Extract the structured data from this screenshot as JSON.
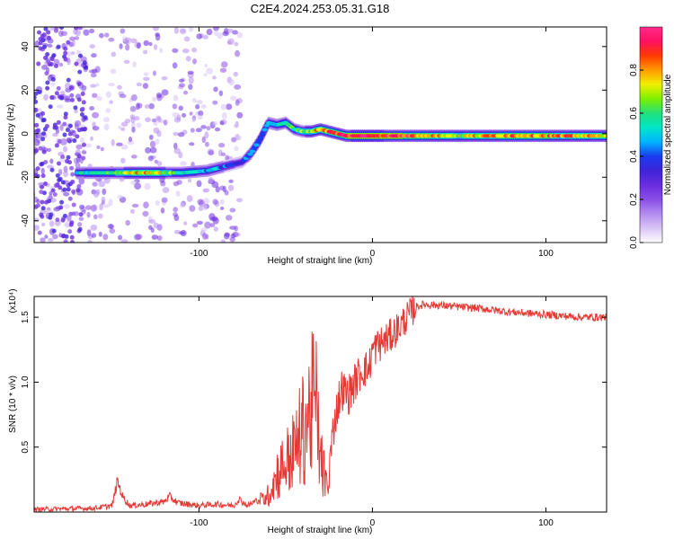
{
  "title": "C2E4.2024.253.05.31.G18",
  "colors": {
    "snr_line": "#e53935",
    "colormap": [
      "#ffffff",
      "#d9c4f5",
      "#b48cf0",
      "#8a4fe6",
      "#6a2de0",
      "#3e23d8",
      "#1a3cf0",
      "#00b4ff",
      "#00e6c8",
      "#22e07a",
      "#7cf000",
      "#f0f000",
      "#ff9a00",
      "#ff3a00",
      "#ff1060",
      "#ff2a8a"
    ]
  },
  "chart_data": [
    {
      "type": "heatmap",
      "xlabel": "Height of straight line (km)",
      "ylabel": "Frequency (Hz)",
      "xlim": [
        -195,
        135
      ],
      "ylim": [
        -50,
        49
      ],
      "xticks": [
        -100,
        0,
        100
      ],
      "xtick_labels": [
        "-100",
        "0",
        "100"
      ],
      "yticks": [
        -40,
        -20,
        0,
        20,
        40
      ],
      "ytick_labels": [
        "-40",
        "-20",
        "0",
        "20",
        "40"
      ],
      "grid": false,
      "ridge": {
        "x": [
          -170,
          -150,
          -130,
          -110,
          -95,
          -85,
          -75,
          -70,
          -65,
          -60,
          -55,
          -50,
          -45,
          -40,
          -35,
          -30,
          -25,
          -20,
          -15,
          -10,
          -5,
          0,
          20,
          50,
          80,
          110,
          135
        ],
        "frequency": [
          -18,
          -18,
          -18,
          -18,
          -17,
          -15,
          -13,
          -9,
          -3,
          5,
          4,
          5,
          2,
          1,
          1,
          2,
          1,
          0,
          -1,
          -1,
          -1,
          -1,
          -1,
          -1,
          -1,
          -1,
          -1
        ],
        "amplitude": [
          0.5,
          0.6,
          0.8,
          0.55,
          0.5,
          0.4,
          0.35,
          0.45,
          0.45,
          0.5,
          0.5,
          0.55,
          0.6,
          0.65,
          0.7,
          0.8,
          0.85,
          0.9,
          0.9,
          0.95,
          0.95,
          0.95,
          0.9,
          0.7,
          0.85,
          0.8,
          0.75
        ]
      },
      "colorbar": {
        "label": "Normalized spectral amplitude",
        "range": [
          0.0,
          1.0
        ],
        "ticks": [
          0.0,
          0.2,
          0.4,
          0.6,
          0.8
        ],
        "tick_labels": [
          "0.0",
          "0.2",
          "0.4",
          "0.6",
          "0.8"
        ]
      }
    },
    {
      "type": "line",
      "xlabel": "Height of straight line (km)",
      "ylabel": "SNR (10 * v/v)",
      "scale_label": "(x10⁴)",
      "xlim": [
        -195,
        135
      ],
      "ylim": [
        0.0,
        1.66
      ],
      "xticks": [
        -100,
        0,
        100
      ],
      "xtick_labels": [
        "-100",
        "0",
        "100"
      ],
      "yticks": [
        0.5,
        1.0,
        1.5
      ],
      "ytick_labels": [
        "0.5",
        "1.0",
        "1.5"
      ],
      "grid": false,
      "series": [
        {
          "x": [
            -195,
            -160,
            -150,
            -147,
            -144,
            -140,
            -130,
            -120,
            -117,
            -112,
            -100,
            -90,
            -80,
            -77,
            -72,
            -65,
            -60,
            -55,
            -50,
            -45,
            -40,
            -35,
            -33,
            -30,
            -26,
            -22,
            -18,
            -14,
            -10,
            -6,
            -2,
            0,
            5,
            10,
            15,
            20,
            25,
            30,
            40,
            60,
            80,
            100,
            120,
            135
          ],
          "y": [
            0.02,
            0.03,
            0.05,
            0.24,
            0.12,
            0.05,
            0.06,
            0.08,
            0.12,
            0.07,
            0.05,
            0.06,
            0.05,
            0.1,
            0.05,
            0.1,
            0.15,
            0.35,
            0.45,
            0.55,
            0.75,
            0.95,
            1.05,
            0.5,
            0.2,
            0.7,
            0.95,
            0.9,
            1.0,
            1.1,
            1.1,
            1.25,
            1.3,
            1.35,
            1.42,
            1.5,
            1.58,
            1.6,
            1.59,
            1.57,
            1.54,
            1.52,
            1.5,
            1.5
          ]
        }
      ]
    }
  ]
}
